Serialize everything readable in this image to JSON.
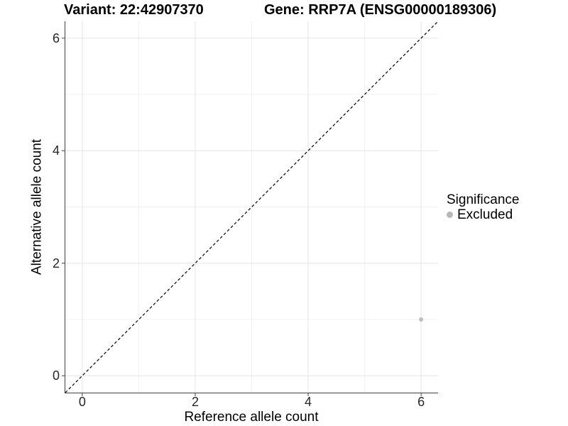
{
  "chart_data": {
    "type": "scatter",
    "titles": {
      "left": "Variant: 22:42907370",
      "right": "Gene: RRP7A (ENSG00000189306)"
    },
    "xlabel": "Reference allele count",
    "ylabel": "Alternative allele count",
    "xlim": [
      -0.3,
      6.3
    ],
    "ylim": [
      -0.3,
      6.3
    ],
    "x_ticks": [
      0,
      2,
      4,
      6
    ],
    "y_ticks": [
      0,
      2,
      4,
      6
    ],
    "x_minor_ticks": [
      1,
      3,
      5
    ],
    "y_minor_ticks": [
      1,
      3,
      5
    ],
    "grid": {
      "major": true,
      "minor": true
    },
    "reference_line": {
      "type": "identity",
      "slope": 1,
      "intercept": 0,
      "style": "dashed",
      "color": "#000000"
    },
    "series": [
      {
        "name": "Excluded",
        "color": "#bebebe",
        "points": [
          {
            "x": 6,
            "y": 1
          }
        ]
      }
    ],
    "legend": {
      "title": "Significance",
      "position": "right",
      "items": [
        {
          "label": "Excluded",
          "color": "#b8b8b8"
        }
      ]
    }
  },
  "colors": {
    "background": "#ffffff",
    "grid_major": "#e4e4e4",
    "grid_minor": "#f1f1f1",
    "axis_line": "#404040",
    "tick_mark": "#404040",
    "tick_text": "#262626",
    "title_text": "#000000"
  }
}
